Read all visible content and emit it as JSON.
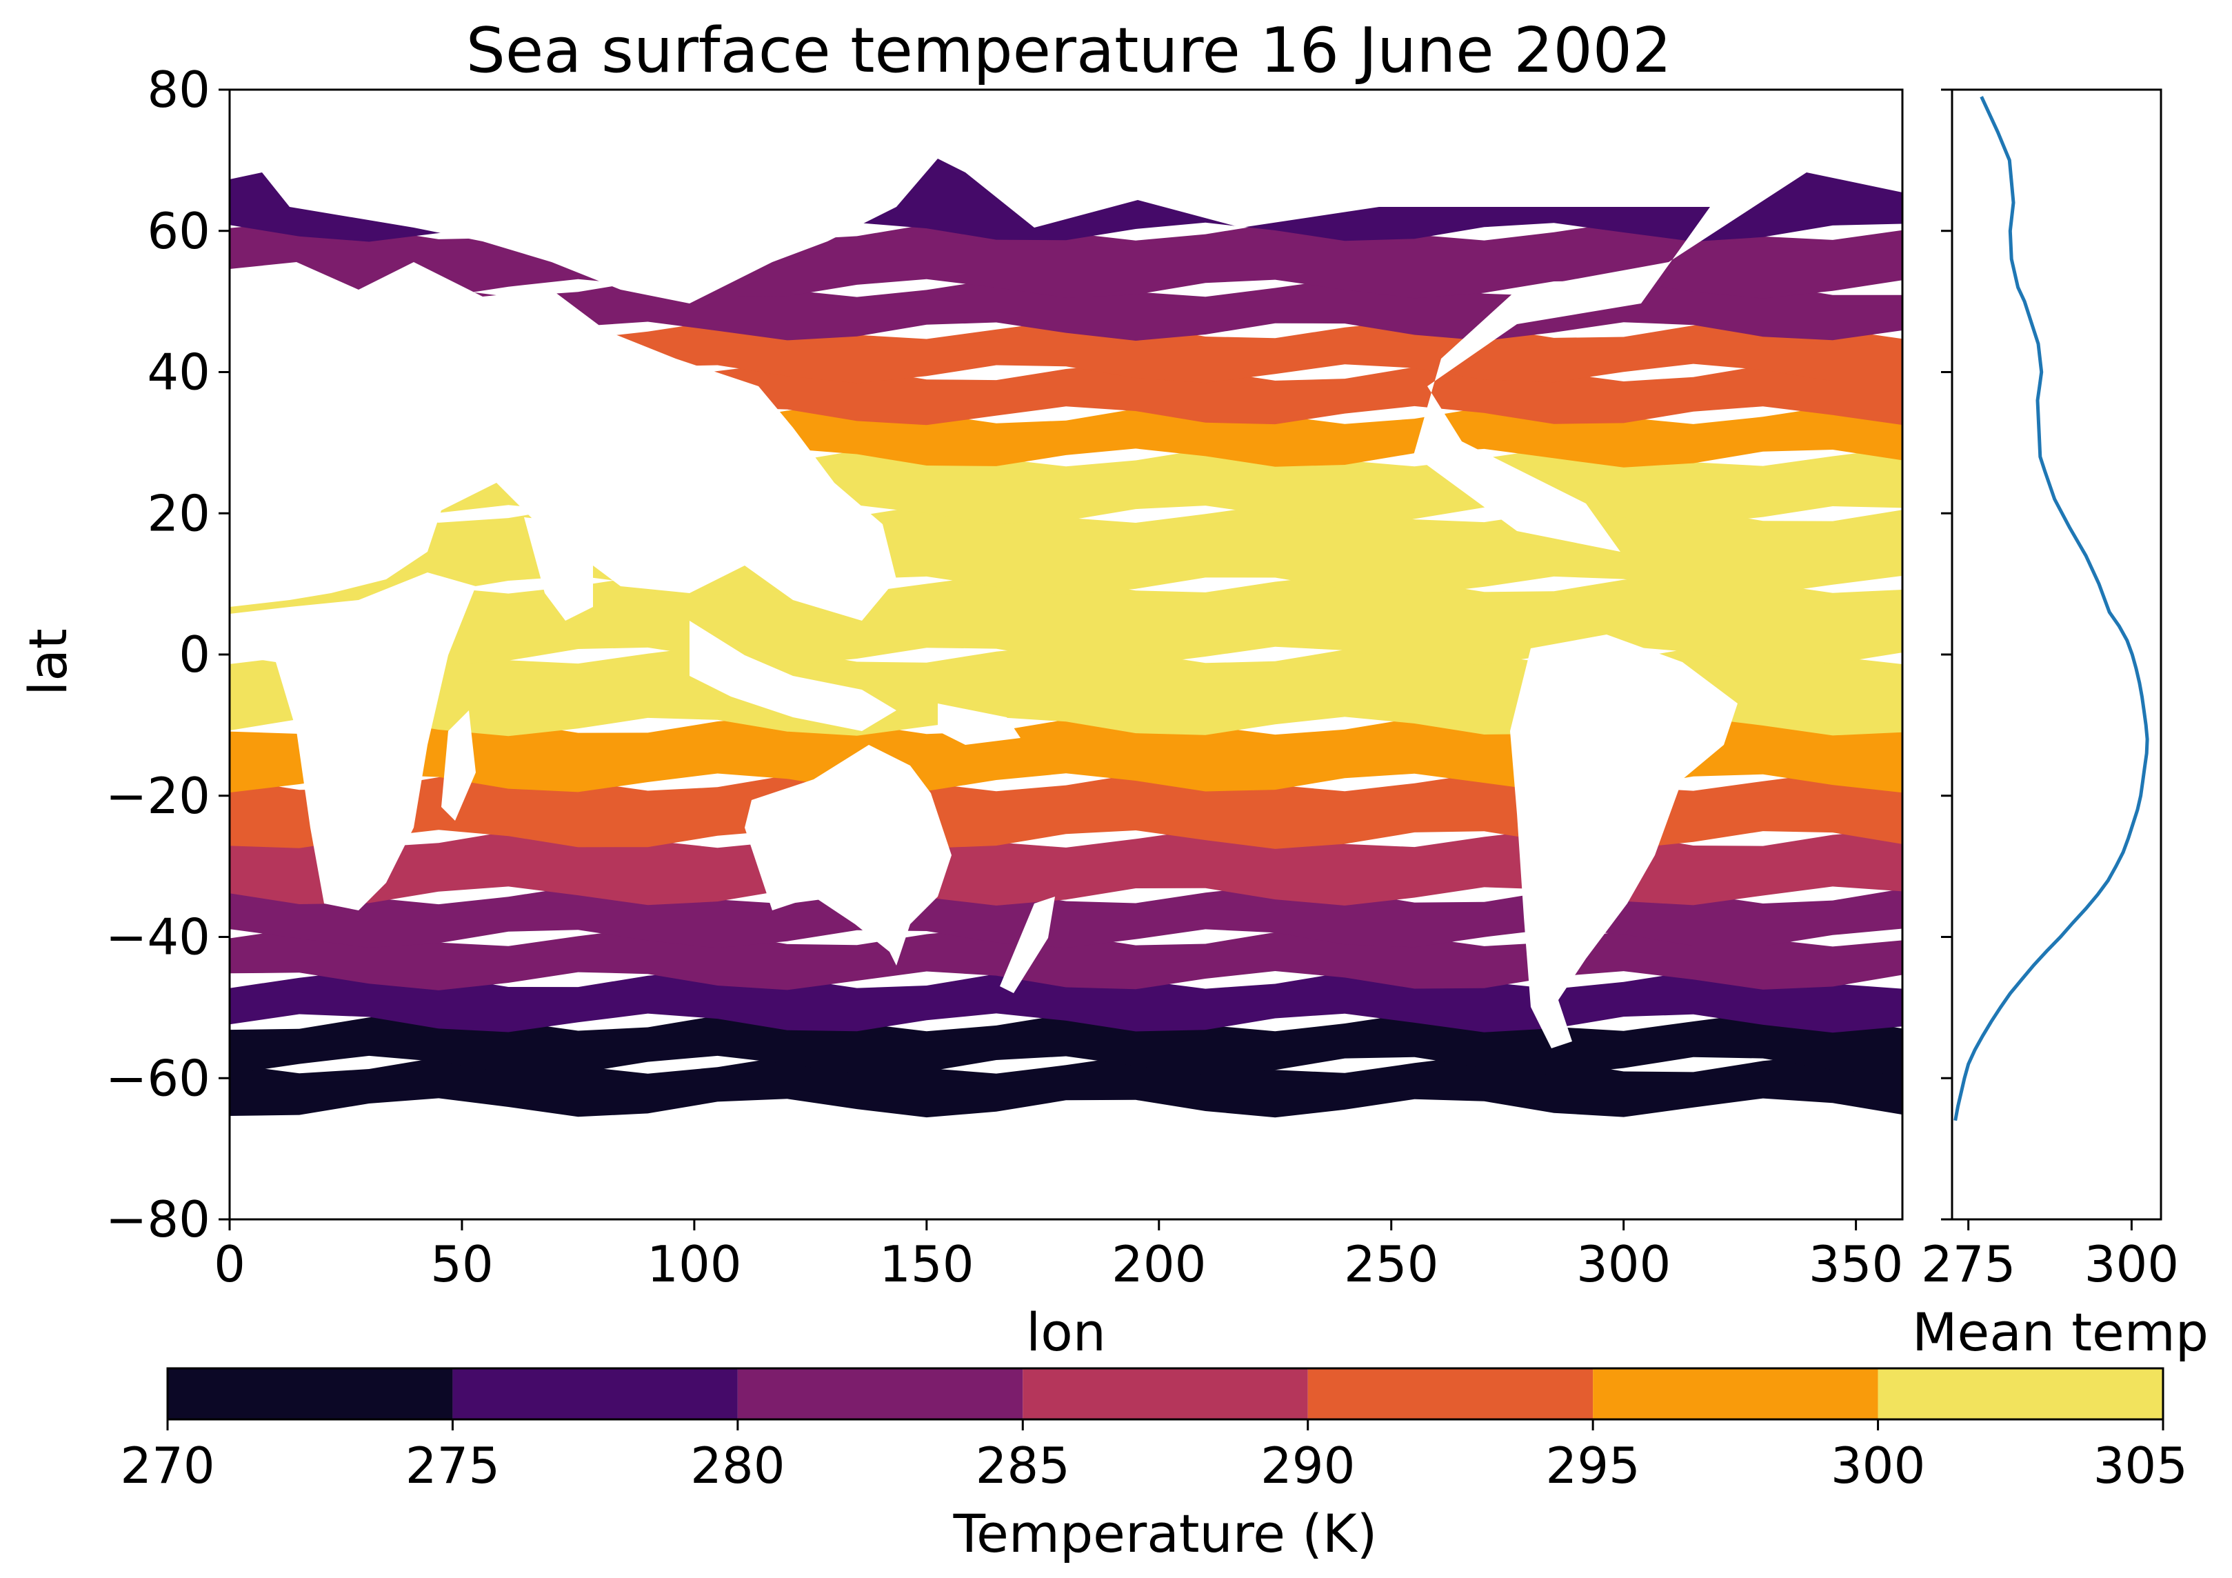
{
  "chart_data": [
    {
      "type": "filled-contour-map",
      "title": "Sea surface temperature 16 June 2002",
      "xlabel": "lon",
      "ylabel": "lat",
      "xlim": [
        0,
        360
      ],
      "ylim": [
        -80,
        80
      ],
      "xticks": [
        0,
        50,
        100,
        150,
        200,
        250,
        300,
        350
      ],
      "yticks": [
        -80,
        -60,
        -40,
        -20,
        0,
        20,
        40,
        60,
        80
      ],
      "xtick_labels": [
        "0",
        "50",
        "100",
        "150",
        "200",
        "250",
        "300",
        "350"
      ],
      "ytick_labels": [
        "−80",
        "−60",
        "−40",
        "−20",
        "0",
        "20",
        "40",
        "60",
        "80"
      ],
      "colormap": "inferno",
      "levels": [
        270,
        275,
        280,
        285,
        290,
        295,
        300,
        305
      ],
      "level_colors": [
        "#0c0826",
        "#450a69",
        "#7c1d6c",
        "#b5365b",
        "#e45d2f",
        "#f99b0b",
        "#f2e35d"
      ],
      "land_color": "#ffffff",
      "zonal_band_temperature_by_lat": {
        "lat": [
          -64,
          -58,
          -52,
          -46,
          -40,
          -34,
          -26,
          -18,
          -10,
          0,
          10,
          20,
          28,
          34,
          40,
          46,
          52,
          60,
          70,
          78
        ],
        "temp": [
          272,
          273,
          276,
          280,
          284,
          289,
          294,
          297,
          300,
          302,
          302,
          300,
          297,
          294,
          290,
          284,
          280,
          277,
          277,
          274
        ]
      }
    },
    {
      "type": "line",
      "xlabel": "Mean temp",
      "ylabel": "",
      "xlim": [
        272.5,
        304.5
      ],
      "ylim": [
        -80,
        80
      ],
      "xticks": [
        275,
        300
      ],
      "xtick_labels": [
        "275",
        "300"
      ],
      "line_color": "#1f77b4",
      "series": [
        {
          "x": [
            273.0,
            273.4,
            273.9,
            274.4,
            275.0,
            276.0,
            277.2,
            278.5,
            279.9,
            281.4,
            283.2,
            285.0,
            287.0,
            289.1,
            291.0,
            293.0,
            294.8,
            296.4,
            297.6,
            298.7,
            299.5,
            300.2,
            300.9,
            301.4,
            301.7,
            302.0,
            302.3,
            302.4,
            302.2,
            301.9,
            301.6,
            301.2,
            300.7,
            300.1,
            299.3,
            298.1,
            296.6,
            295.0,
            293.0,
            290.5,
            288.2,
            286.7,
            286.0,
            285.8,
            285.6,
            285.9,
            286.2,
            285.7,
            285.0,
            283.6,
            282.6,
            281.6,
            281.4,
            281.9,
            281.3,
            279.5,
            277.0
          ],
          "y": [
            -66,
            -64,
            -62,
            -60,
            -58,
            -56,
            -54,
            -52,
            -50,
            -48,
            -46,
            -44,
            -42,
            -40,
            -38,
            -36,
            -34,
            -32,
            -30,
            -28,
            -26,
            -24,
            -22,
            -20,
            -18,
            -16,
            -14,
            -12,
            -10,
            -8,
            -6,
            -4,
            -2,
            0,
            2,
            4,
            6,
            10,
            14,
            18,
            22,
            26,
            28,
            32,
            36,
            38,
            40,
            44,
            46,
            50,
            52,
            56,
            60,
            64,
            70,
            74,
            79
          ]
        }
      ]
    },
    {
      "type": "colorbar",
      "label": "Temperature (K)",
      "ticks": [
        270,
        275,
        280,
        285,
        290,
        295,
        300,
        305
      ],
      "tick_labels": [
        "270",
        "275",
        "280",
        "285",
        "290",
        "295",
        "300",
        "305"
      ],
      "range": [
        270,
        305
      ]
    }
  ]
}
